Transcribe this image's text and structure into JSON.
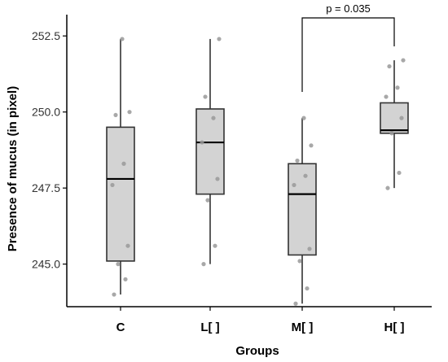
{
  "chart_data": {
    "type": "boxplot",
    "xlabel": "Groups",
    "ylabel": "Presence of mucus (in pixel)",
    "ylim": [
      243.6,
      253.2
    ],
    "yticks": [
      245.0,
      247.5,
      250.0,
      252.5
    ],
    "ytick_labels": [
      "245.0",
      "247.5",
      "250.0",
      "252.5"
    ],
    "grid": false,
    "legend": "none",
    "categories": [
      "C",
      "L[ ]",
      "M[ ]",
      "H[ ]"
    ],
    "boxes": [
      {
        "min": 244.0,
        "q1": 245.1,
        "median": 247.8,
        "q3": 249.5,
        "max": 252.4
      },
      {
        "min": 245.0,
        "q1": 247.3,
        "median": 249.0,
        "q3": 250.1,
        "max": 252.4
      },
      {
        "min": 243.7,
        "q1": 245.3,
        "median": 247.3,
        "q3": 248.3,
        "max": 249.8
      },
      {
        "min": 247.5,
        "q1": 249.3,
        "median": 249.4,
        "q3": 250.3,
        "max": 251.7
      }
    ],
    "points": [
      [
        244.0,
        244.5,
        245.0,
        245.6,
        247.6,
        248.3,
        249.9,
        250.0,
        252.4
      ],
      [
        245.0,
        245.6,
        247.1,
        247.8,
        249.0,
        249.8,
        250.5,
        252.4
      ],
      [
        243.7,
        244.2,
        245.1,
        245.5,
        247.6,
        247.9,
        248.4,
        248.9,
        249.8
      ],
      [
        247.5,
        248.0,
        249.3,
        249.8,
        250.5,
        250.8,
        251.5,
        251.7
      ]
    ],
    "annotations": [
      {
        "text": "p = 0.035",
        "from": "M[ ]",
        "to": "H[ ]"
      }
    ],
    "colors": {
      "box_fill": "#d3d3d3",
      "box_stroke": "#333333",
      "point": "#999999",
      "axis": "#000000"
    }
  }
}
